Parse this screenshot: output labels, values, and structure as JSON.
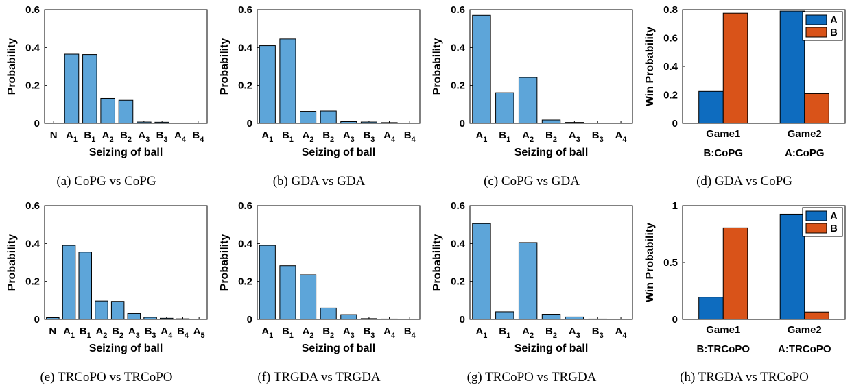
{
  "figure": {
    "panels": [
      {
        "caption": "(a) CoPG vs CoPG",
        "chart_data": {
          "type": "bar",
          "categories": [
            "N",
            "A_1",
            "B_1",
            "A_2",
            "B_2",
            "A_3",
            "B_3",
            "A_4",
            "B_4"
          ],
          "values": [
            0,
            0.365,
            0.363,
            0.132,
            0.122,
            0.007,
            0.006,
            0.001,
            0.001
          ],
          "xlabel": "Seizing of ball",
          "ylabel": "Probability",
          "ylim": [
            0,
            0.6
          ],
          "yticks": [
            "0",
            "0.2",
            "0.4",
            "0.6"
          ],
          "color": "#5DA5D9",
          "grid": false
        }
      },
      {
        "caption": "(b) GDA vs GDA",
        "chart_data": {
          "type": "bar",
          "categories": [
            "A_1",
            "B_1",
            "A_2",
            "B_2",
            "A_3",
            "B_3",
            "A_4",
            "B_4"
          ],
          "values": [
            0.41,
            0.445,
            0.063,
            0.065,
            0.009,
            0.007,
            0.004,
            0.001
          ],
          "xlabel": "Seizing of ball",
          "ylabel": "Probability",
          "ylim": [
            0,
            0.6
          ],
          "yticks": [
            "0",
            "0.2",
            "0.4",
            "0.6"
          ],
          "color": "#5DA5D9",
          "grid": false
        }
      },
      {
        "caption": "(c) CoPG vs GDA",
        "chart_data": {
          "type": "bar",
          "categories": [
            "A_1",
            "B_1",
            "A_2",
            "B_2",
            "A_3",
            "B_3",
            "A_4"
          ],
          "values": [
            0.57,
            0.162,
            0.242,
            0.018,
            0.005,
            0.001,
            0.001
          ],
          "xlabel": "Seizing of ball",
          "ylabel": "Probability",
          "ylim": [
            0,
            0.6
          ],
          "yticks": [
            "0",
            "0.2",
            "0.4",
            "0.6"
          ],
          "color": "#5DA5D9",
          "grid": false
        }
      },
      {
        "caption": "(d) GDA vs CoPG",
        "chart_data": {
          "type": "bar",
          "categories": [
            "Game1",
            "Game2"
          ],
          "category_sublabels": [
            "B:CoPG",
            "A:CoPG"
          ],
          "series": [
            {
              "name": "A",
              "values": [
                0.225,
                0.79
              ],
              "color": "#0E6CBF"
            },
            {
              "name": "B",
              "values": [
                0.775,
                0.21
              ],
              "color": "#D95319"
            }
          ],
          "ylabel": "Win Probability",
          "ylim": [
            0,
            0.8
          ],
          "yticks": [
            "0",
            "0.2",
            "0.4",
            "0.6",
            "0.8"
          ],
          "legend": "top-right",
          "grid": false
        }
      },
      {
        "caption": "(e) TRCoPO vs TRCoPO",
        "chart_data": {
          "type": "bar",
          "categories": [
            "N",
            "A_1",
            "B_1",
            "A_2",
            "B_2",
            "A_3",
            "B_3",
            "A_4",
            "B_4",
            "A_5"
          ],
          "values": [
            0.009,
            0.39,
            0.355,
            0.097,
            0.095,
            0.031,
            0.011,
            0.006,
            0.003,
            0.001
          ],
          "xlabel": "Seizing of ball",
          "ylabel": "Probability",
          "ylim": [
            0,
            0.6
          ],
          "yticks": [
            "0",
            "0.2",
            "0.4",
            "0.6"
          ],
          "color": "#5DA5D9",
          "grid": false
        }
      },
      {
        "caption": "(f) TRGDA vs TRGDA",
        "chart_data": {
          "type": "bar",
          "categories": [
            "A_1",
            "B_1",
            "A_2",
            "B_2",
            "A_3",
            "B_3",
            "A_4",
            "B_4"
          ],
          "values": [
            0.39,
            0.283,
            0.235,
            0.06,
            0.025,
            0.004,
            0.002,
            0.001
          ],
          "xlabel": "Seizing of ball",
          "ylabel": "Probability",
          "ylim": [
            0,
            0.6
          ],
          "yticks": [
            "0",
            "0.2",
            "0.4",
            "0.6"
          ],
          "color": "#5DA5D9",
          "grid": false
        }
      },
      {
        "caption": "(g) TRCoPO vs TRGDA",
        "chart_data": {
          "type": "bar",
          "categories": [
            "A_1",
            "B_1",
            "A_2",
            "B_2",
            "A_3",
            "B_3",
            "A_4"
          ],
          "values": [
            0.505,
            0.04,
            0.405,
            0.027,
            0.013,
            0.002,
            0.001
          ],
          "xlabel": "Seizing of ball",
          "ylabel": "Probability",
          "ylim": [
            0,
            0.6
          ],
          "yticks": [
            "0",
            "0.2",
            "0.4",
            "0.6"
          ],
          "color": "#5DA5D9",
          "grid": false
        }
      },
      {
        "caption": "(h) TRGDA vs TRCoPO",
        "chart_data": {
          "type": "bar",
          "categories": [
            "Game1",
            "Game2"
          ],
          "category_sublabels": [
            "B:TRCoPO",
            "A:TRCoPO"
          ],
          "series": [
            {
              "name": "A",
              "values": [
                0.195,
                0.925
              ],
              "color": "#0E6CBF"
            },
            {
              "name": "B",
              "values": [
                0.805,
                0.065
              ],
              "color": "#D95319"
            }
          ],
          "ylabel": "Win Probability",
          "ylim": [
            0,
            1
          ],
          "yticks": [
            "0",
            "0.5",
            "1"
          ],
          "legend": "top-right",
          "grid": false
        }
      }
    ]
  }
}
